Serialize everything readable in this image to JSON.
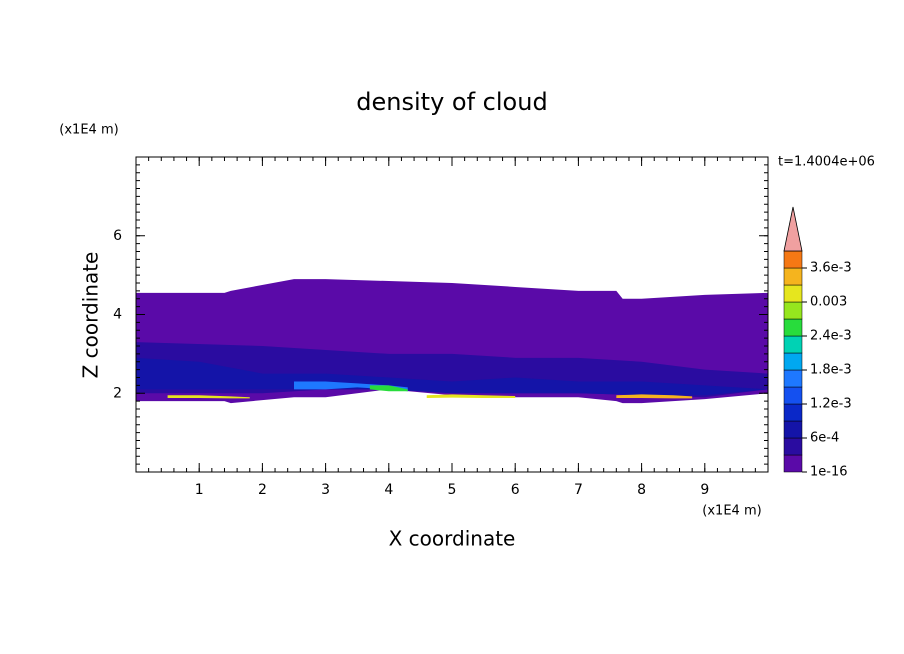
{
  "chart_data": {
    "type": "contour",
    "title": "density of cloud",
    "x_label": "X coordinate",
    "y_label": "Z coordinate",
    "x_unit": "(x1E4 m)",
    "y_unit": "(x1E4 m)",
    "annotation": "t=1.4004e+06",
    "xlim": [
      0,
      10
    ],
    "ylim": [
      0,
      8
    ],
    "xticks": [
      1,
      2,
      3,
      4,
      5,
      6,
      7,
      8,
      9
    ],
    "yticks": [
      2,
      4,
      6
    ],
    "colorbar": {
      "clim": [
        1e-16,
        0.0039
      ],
      "colors": [
        "#5a0aa8",
        "#2a0ca0",
        "#1414a8",
        "#0a28c8",
        "#1450f0",
        "#1e78ff",
        "#00a8f0",
        "#00d2b4",
        "#28dc3c",
        "#96e61e",
        "#e6e61e",
        "#f5b41e",
        "#f57814",
        "#f03c28",
        "#e61414"
      ],
      "extend_color": "#f0a0a0",
      "ticks": [
        {
          "value": 1e-16,
          "label": "1e-16"
        },
        {
          "value": 0.0006,
          "label": "6e-4"
        },
        {
          "value": 0.0012,
          "label": "1.2e-3"
        },
        {
          "value": 0.0018,
          "label": "1.8e-3"
        },
        {
          "value": 0.0024,
          "label": "2.4e-3"
        },
        0.003,
        {
          "value": 0.0036,
          "label": "3.6e-3"
        }
      ]
    },
    "regions": [
      {
        "value": 0.0001,
        "x": [
          0,
          1.4,
          1.5,
          2.5,
          3,
          4,
          5,
          6,
          7,
          7.6,
          7.7,
          8,
          9,
          10
        ],
        "top": [
          4.55,
          4.55,
          4.6,
          4.9,
          4.9,
          4.85,
          4.8,
          4.7,
          4.6,
          4.6,
          4.4,
          4.4,
          4.5,
          4.55
        ],
        "bottom": [
          1.8,
          1.8,
          1.75,
          1.9,
          1.9,
          2.1,
          1.95,
          1.9,
          1.9,
          1.8,
          1.75,
          1.75,
          1.85,
          2.0
        ]
      },
      {
        "value": 0.0004,
        "x": [
          0,
          2,
          3,
          4,
          5,
          6,
          7,
          8,
          9,
          10
        ],
        "top": [
          3.3,
          3.2,
          3.1,
          3.0,
          3.0,
          2.9,
          2.9,
          2.8,
          2.6,
          2.5
        ],
        "bottom": [
          2.0,
          2.0,
          2.1,
          2.1,
          2.0,
          2.0,
          2.0,
          1.95,
          1.9,
          2.1
        ]
      },
      {
        "value": 0.0008,
        "x": [
          0,
          1,
          2,
          2.5,
          3,
          4,
          5,
          6,
          7,
          8,
          9,
          10
        ],
        "top": [
          2.9,
          2.8,
          2.5,
          2.5,
          2.5,
          2.4,
          2.3,
          2.4,
          2.3,
          2.3,
          2.2,
          2.1
        ],
        "bottom": [
          2.1,
          2.1,
          2.1,
          2.1,
          2.1,
          2.1,
          2.0,
          2.0,
          2.0,
          1.95,
          1.95,
          2.1
        ]
      },
      {
        "value": 0.0017,
        "x": [
          2.5,
          3,
          3.5,
          4,
          4.3
        ],
        "top": [
          2.3,
          2.3,
          2.25,
          2.2,
          2.15
        ],
        "bottom": [
          2.1,
          2.1,
          2.15,
          2.1,
          2.05
        ]
      },
      {
        "value": 0.0025,
        "x": [
          3.7,
          4,
          4.3
        ],
        "top": [
          2.2,
          2.2,
          2.1
        ],
        "bottom": [
          2.1,
          2.05,
          2.05
        ]
      },
      {
        "value": 0.0031,
        "x": [
          0.5,
          1,
          1.5,
          1.8
        ],
        "top": [
          1.95,
          1.95,
          1.92,
          1.9
        ],
        "bottom": [
          1.88,
          1.88,
          1.87,
          1.87
        ]
      },
      {
        "value": 0.0031,
        "x": [
          4.6,
          5,
          5.5,
          6
        ],
        "top": [
          1.95,
          1.97,
          1.95,
          1.93
        ],
        "bottom": [
          1.88,
          1.89,
          1.88,
          1.88
        ]
      },
      {
        "value": 0.0034,
        "x": [
          7.6,
          8,
          8.5,
          8.8
        ],
        "top": [
          1.95,
          1.97,
          1.95,
          1.92
        ],
        "bottom": [
          1.88,
          1.88,
          1.87,
          1.87
        ]
      }
    ]
  }
}
